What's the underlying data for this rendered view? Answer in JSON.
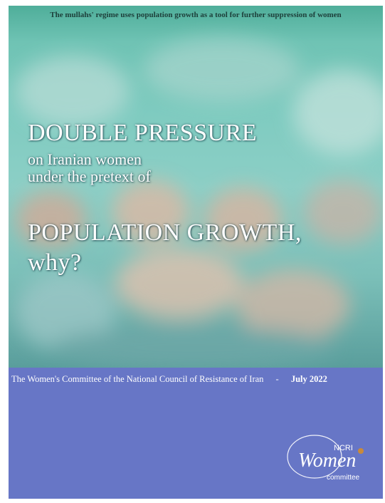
{
  "header": {
    "tagline": "The mullahs' regime uses population growth as a tool for further suppression of women"
  },
  "title": {
    "line1": "DOUBLE PRESSURE",
    "line2": "on Iranian women",
    "line3": "under the pretext of",
    "line4": "POPULATION GROWTH,",
    "line5": "why?"
  },
  "footer": {
    "publisher": "The Women's Committee of the National Council of Resistance of Iran",
    "separator": "-",
    "date": "July 2022"
  },
  "logo": {
    "org": "NCRI",
    "name": "Women",
    "sub": "committee"
  }
}
